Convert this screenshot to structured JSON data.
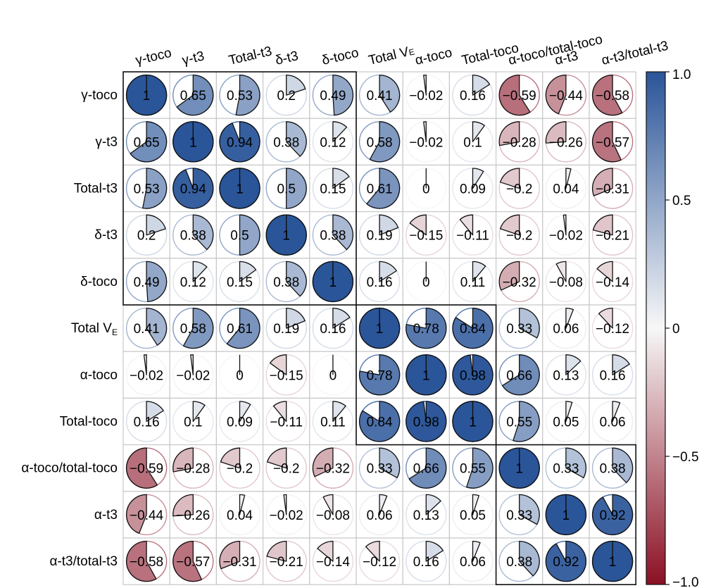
{
  "chart_data": {
    "type": "heatmap",
    "variables": [
      "γ-toco",
      "γ-t3",
      "Total-t3",
      "δ-t3",
      "δ-toco",
      "Total V_E",
      "α-toco",
      "Total-toco",
      "α-toco/total-toco",
      "α-t3",
      "α-t3/total-t3"
    ],
    "row_labels": [
      {
        "main": "γ-toco",
        "sub": ""
      },
      {
        "main": "γ-t3",
        "sub": ""
      },
      {
        "main": "Total-t3",
        "sub": ""
      },
      {
        "main": "δ-t3",
        "sub": ""
      },
      {
        "main": "δ-toco",
        "sub": ""
      },
      {
        "main": "Total V",
        "sub": "E"
      },
      {
        "main": "α-toco",
        "sub": ""
      },
      {
        "main": "Total-toco",
        "sub": ""
      },
      {
        "main": "α-toco/total-toco",
        "sub": ""
      },
      {
        "main": "α-t3",
        "sub": ""
      },
      {
        "main": "α-t3/total-t3",
        "sub": ""
      }
    ],
    "matrix": [
      [
        1,
        0.65,
        0.53,
        0.2,
        0.49,
        0.41,
        -0.02,
        0.16,
        -0.59,
        -0.44,
        -0.58
      ],
      [
        0.65,
        1,
        0.94,
        0.38,
        0.12,
        0.58,
        -0.02,
        0.1,
        -0.28,
        -0.26,
        -0.57
      ],
      [
        0.53,
        0.94,
        1,
        0.5,
        0.15,
        0.61,
        0,
        0.09,
        -0.2,
        0.04,
        -0.31
      ],
      [
        0.2,
        0.38,
        0.5,
        1,
        0.38,
        0.19,
        -0.15,
        -0.11,
        -0.2,
        -0.02,
        -0.21
      ],
      [
        0.49,
        0.12,
        0.15,
        0.38,
        1,
        0.16,
        0,
        0.11,
        -0.32,
        -0.08,
        -0.14
      ],
      [
        0.41,
        0.58,
        0.61,
        0.19,
        0.16,
        1,
        0.78,
        0.84,
        0.33,
        0.06,
        -0.12
      ],
      [
        -0.02,
        -0.02,
        0,
        -0.15,
        0,
        0.78,
        1,
        0.98,
        0.66,
        0.13,
        0.16
      ],
      [
        0.16,
        0.1,
        0.09,
        -0.11,
        0.11,
        0.84,
        0.98,
        1,
        0.55,
        0.05,
        0.06
      ],
      [
        -0.59,
        -0.28,
        -0.2,
        -0.2,
        -0.32,
        0.33,
        0.66,
        0.55,
        1,
        0.33,
        0.38
      ],
      [
        -0.44,
        -0.26,
        0.04,
        -0.02,
        -0.08,
        0.06,
        0.13,
        0.05,
        0.33,
        1,
        0.92
      ],
      [
        -0.58,
        -0.57,
        -0.31,
        -0.21,
        -0.14,
        -0.12,
        0.16,
        0.06,
        0.38,
        0.92,
        1
      ]
    ],
    "cluster_blocks": [
      [
        0,
        4
      ],
      [
        5,
        7
      ],
      [
        8,
        10
      ]
    ],
    "colorbar": {
      "ticks": [
        1.0,
        0.5,
        0,
        -0.5,
        -1.0
      ],
      "tick_labels": [
        "1.0",
        "0.5",
        "0",
        "−0.5",
        "−1.0"
      ],
      "range": [
        -1,
        1
      ],
      "colors": {
        "positive": "#2a5599",
        "mid": "#f7f7f7",
        "negative": "#8b1024"
      }
    },
    "title": "",
    "xlabel": "",
    "ylabel": ""
  }
}
